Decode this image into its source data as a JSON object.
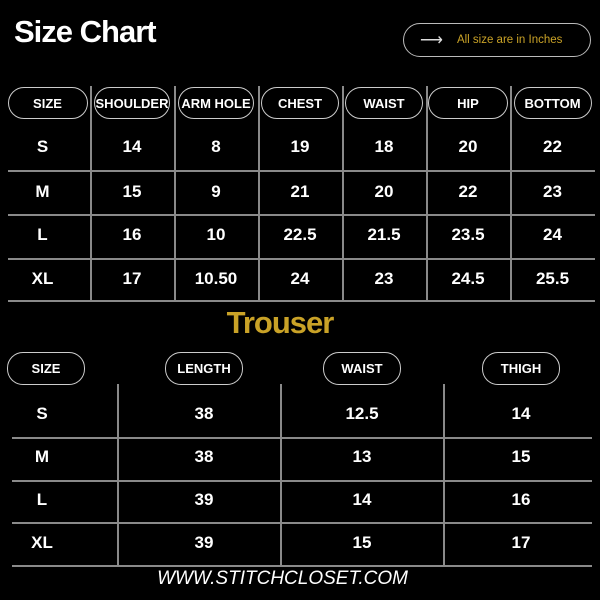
{
  "title": "Size Chart",
  "note": {
    "icon": "arrow-right-icon",
    "text": "All size are in Inches"
  },
  "accent_color": "#c9a227",
  "top_table": {
    "headers": [
      "SIZE",
      "SHOULDER",
      "ARM HOLE",
      "CHEST",
      "WAIST",
      "HIP",
      "BOTTOM"
    ],
    "rows": [
      [
        "S",
        "14",
        "8",
        "19",
        "18",
        "20",
        "22"
      ],
      [
        "M",
        "15",
        "9",
        "21",
        "20",
        "22",
        "23"
      ],
      [
        "L",
        "16",
        "10",
        "22.5",
        "21.5",
        "23.5",
        "24"
      ],
      [
        "XL",
        "17",
        "10.50",
        "24",
        "23",
        "24.5",
        "25.5"
      ]
    ]
  },
  "trouser": {
    "title": "Trouser",
    "headers": [
      "SIZE",
      "LENGTH",
      "WAIST",
      "THIGH"
    ],
    "rows": [
      [
        "S",
        "38",
        "12.5",
        "14"
      ],
      [
        "M",
        "38",
        "13",
        "15"
      ],
      [
        "L",
        "39",
        "14",
        "16"
      ],
      [
        "XL",
        "39",
        "15",
        "17"
      ]
    ]
  },
  "footer": "WWW.STITCHCLOSET.COM"
}
